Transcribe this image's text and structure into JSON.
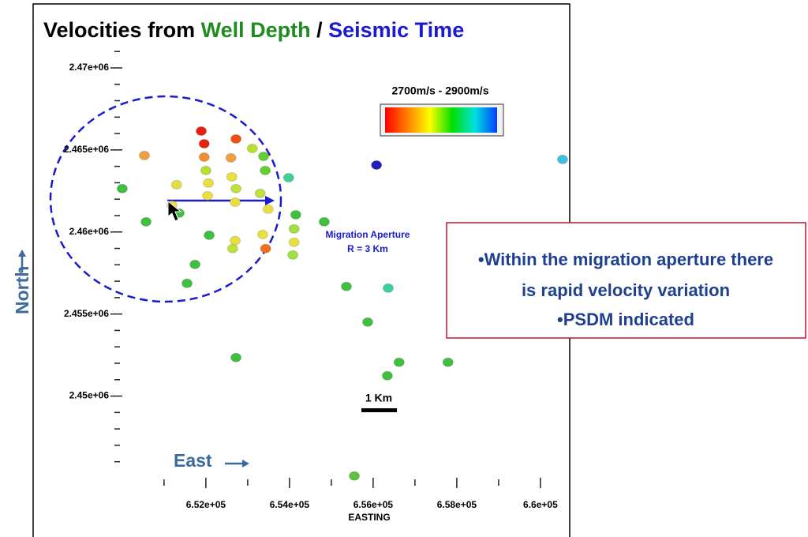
{
  "chart_data": {
    "type": "scatter",
    "title_parts": [
      {
        "text": "Velocities from ",
        "color": "#000000"
      },
      {
        "text": "Well Depth",
        "color": "#1e8c1e"
      },
      {
        "text": " / ",
        "color": "#000000"
      },
      {
        "text": "Seismic Time",
        "color": "#1a1ad0"
      }
    ],
    "xlabel": "EASTING",
    "x_arrow_label": "East",
    "y_arrow_label": "North",
    "xlim": [
      649870,
      660700
    ],
    "ylim": [
      2444300,
      2471250
    ],
    "xticks": [
      {
        "value": 652000,
        "label": "6.52e+05"
      },
      {
        "value": 654000,
        "label": "6.54e+05"
      },
      {
        "value": 656000,
        "label": "6.56e+05"
      },
      {
        "value": 658000,
        "label": "6.58e+05"
      },
      {
        "value": 660000,
        "label": "6.6e+05"
      }
    ],
    "xminorticks": [
      651000,
      653000,
      655000,
      657000,
      659000
    ],
    "yticks": [
      {
        "value": 2470000,
        "label": "2.47e+06"
      },
      {
        "value": 2465000,
        "label": "2.465e+06"
      },
      {
        "value": 2460000,
        "label": "2.46e+06"
      },
      {
        "value": 2455000,
        "label": "2.455e+06"
      },
      {
        "value": 2450000,
        "label": "2.45e+06"
      }
    ],
    "yminorticks": [
      2446000,
      2447000,
      2448000,
      2449000,
      2451000,
      2452000,
      2453000,
      2454000,
      2456000,
      2457000,
      2458000,
      2459000,
      2461000,
      2462000,
      2463000,
      2464000,
      2466000,
      2467000,
      2468000,
      2469000,
      2471000
    ],
    "x": [
      651890,
      651960,
      652720,
      650530,
      651960,
      652600,
      653110,
      653380,
      652000,
      652620,
      653420,
      653980,
      650000,
      651300,
      652060,
      652720,
      653300,
      652040,
      652700,
      653490,
      656080,
      660530,
      654150,
      654830,
      650570,
      651360,
      654110,
      651190,
      652080,
      652700,
      652640,
      653360,
      654110,
      653430,
      654080,
      651740,
      651550,
      655360,
      656360,
      655870,
      652720,
      656620,
      657790,
      656340,
      655550
    ],
    "y": [
      2466150,
      2465380,
      2465670,
      2464660,
      2464560,
      2464520,
      2465090,
      2464610,
      2463750,
      2463360,
      2463750,
      2463310,
      2462640,
      2462880,
      2462980,
      2462640,
      2462350,
      2462210,
      2461820,
      2461390,
      2464080,
      2464420,
      2461050,
      2460620,
      2460620,
      2461150,
      2460190,
      2461630,
      2459800,
      2459470,
      2458990,
      2459850,
      2459370,
      2458990,
      2458600,
      2458020,
      2456870,
      2456680,
      2456580,
      2454510,
      2452350,
      2452060,
      2452060,
      2451240,
      2445130
    ],
    "point_colors": [
      "#e82010",
      "#e82010",
      "#f05010",
      "#f0a040",
      "#f09030",
      "#f0a040",
      "#b8e030",
      "#60d030",
      "#b8e030",
      "#e8e040",
      "#60d030",
      "#40d090",
      "#40c040",
      "#e0e040",
      "#e8e040",
      "#c0e040",
      "#c0e040",
      "#e8e040",
      "#e8e040",
      "#e8e040",
      "#2020c0",
      "#40c0e0",
      "#40c040",
      "#40c040",
      "#40c040",
      "#40c040",
      "#a0e040",
      "#e8e040",
      "#40c040",
      "#e8e040",
      "#c0e040",
      "#e8e040",
      "#e8e040",
      "#f07020",
      "#a0e040",
      "#40c040",
      "#40c040",
      "#40c040",
      "#40d0a0",
      "#40c040",
      "#40c040",
      "#40c040",
      "#40c040",
      "#40c040",
      "#60c040"
    ],
    "colorbar": {
      "label": "2700m/s - 2900m/s",
      "colors": [
        "#ff0000",
        "#ff8000",
        "#ffff00",
        "#00e000",
        "#00e0e0",
        "#0040ff"
      ]
    },
    "aperture_labels": [
      "Migration Aperture",
      "R = 3 Km"
    ],
    "scale_label": "1 Km",
    "callout": [
      "•Within the migration aperture there",
      "is rapid velocity variation",
      "•PSDM indicated"
    ]
  }
}
